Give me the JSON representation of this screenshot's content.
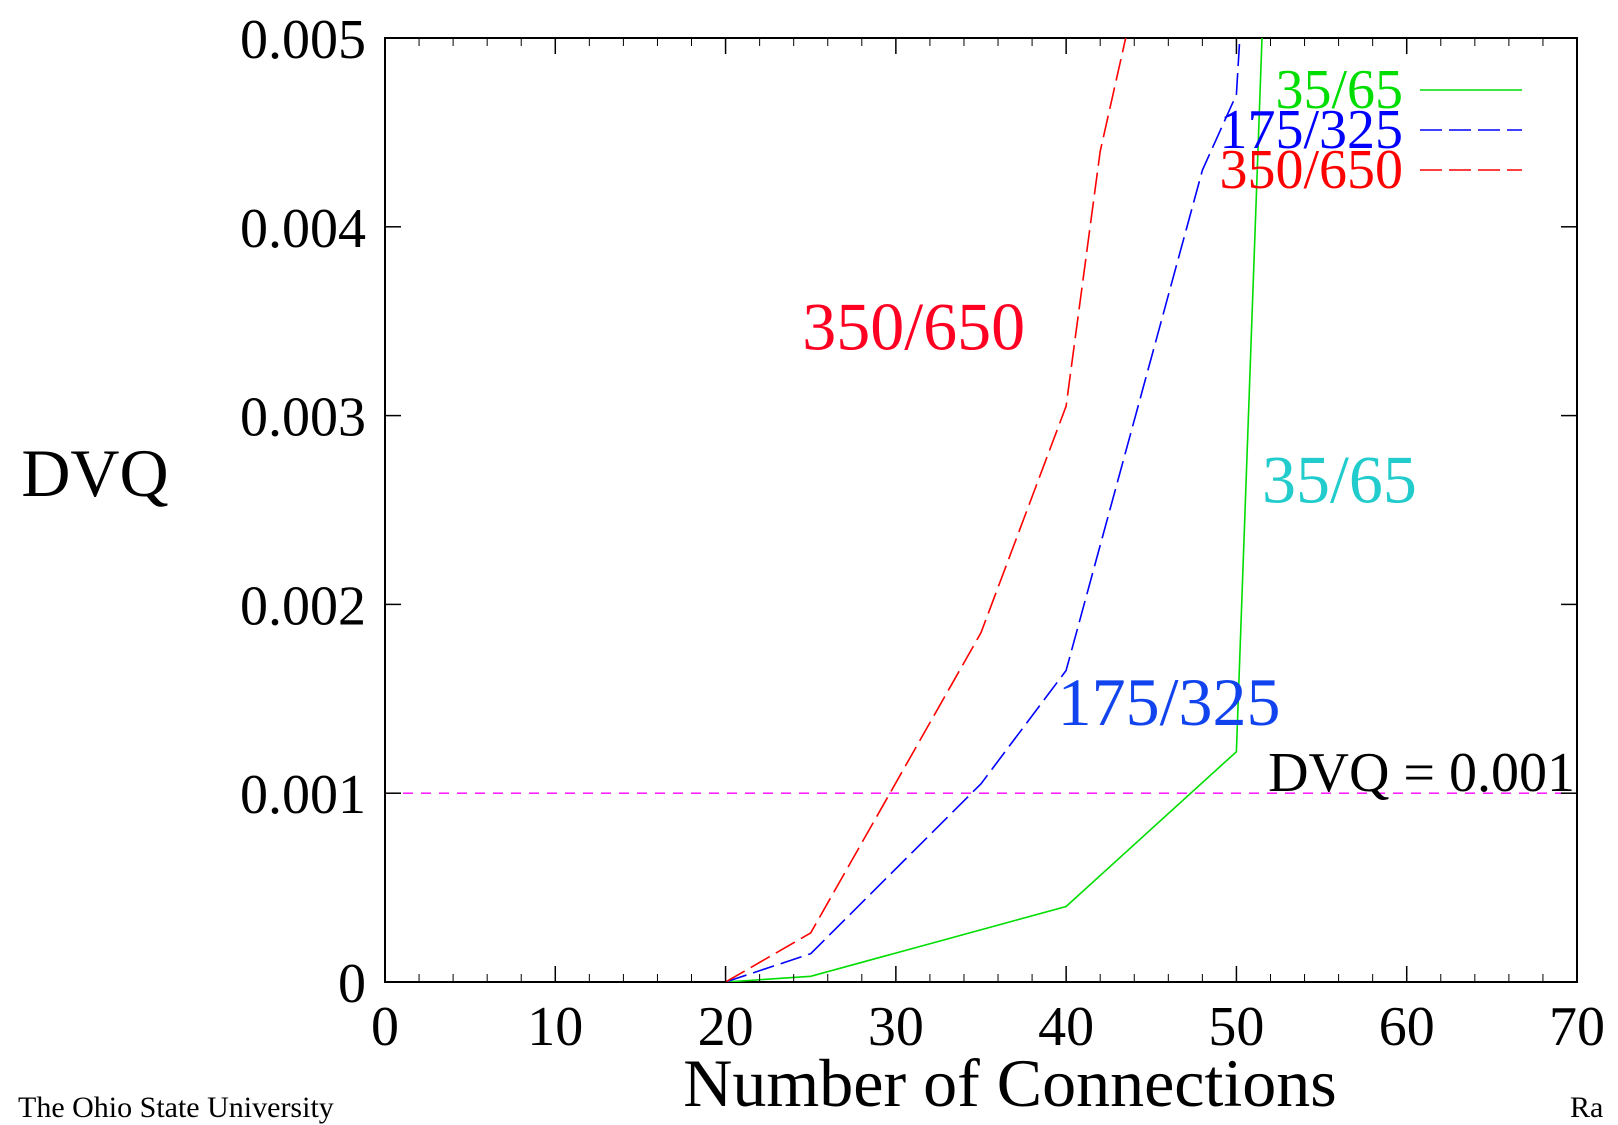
{
  "chart_data": {
    "type": "line",
    "xlabel": "Number of Connections",
    "ylabel": "DVQ",
    "xlim": [
      0,
      70
    ],
    "ylim": [
      0,
      0.005
    ],
    "x_ticks": [
      "0",
      "10",
      "20",
      "30",
      "40",
      "50",
      "60",
      "70"
    ],
    "y_ticks": [
      "0",
      "0.001",
      "0.002",
      "0.003",
      "0.004",
      "0.005"
    ],
    "grid": false,
    "legend_position": "top-right",
    "series": [
      {
        "name": "35/65",
        "color": "#00dd00",
        "style": "solid",
        "x": [
          20,
          25,
          40,
          50,
          51.5
        ],
        "y": [
          0,
          3e-05,
          0.0004,
          0.00122,
          0.005
        ]
      },
      {
        "name": "175/325",
        "color": "#0000ff",
        "style": "dashed",
        "x": [
          20,
          25,
          35,
          40,
          48,
          50,
          50.2
        ],
        "y": [
          0,
          0.00015,
          0.00105,
          0.00165,
          0.0043,
          0.0047,
          0.005
        ]
      },
      {
        "name": "350/650",
        "color": "#ff0000",
        "style": "dashed",
        "x": [
          20,
          25,
          35,
          40,
          42,
          43.5
        ],
        "y": [
          0,
          0.00026,
          0.00185,
          0.00305,
          0.0044,
          0.005
        ]
      }
    ],
    "reference_line": {
      "label": "DVQ = 0.001",
      "y": 0.001,
      "color": "#ff00ff"
    },
    "annotations": [
      {
        "text": "350/650",
        "color": "#ff0022",
        "x": 24.5,
        "y": 0.00335
      },
      {
        "text": "35/65",
        "color": "#22cccc",
        "x": 51.5,
        "y": 0.00254
      },
      {
        "text": "175/325",
        "color": "#1144ee",
        "x": 39.5,
        "y": 0.00136
      }
    ]
  },
  "footer": {
    "left": "The Ohio State University",
    "right": "Ra"
  }
}
